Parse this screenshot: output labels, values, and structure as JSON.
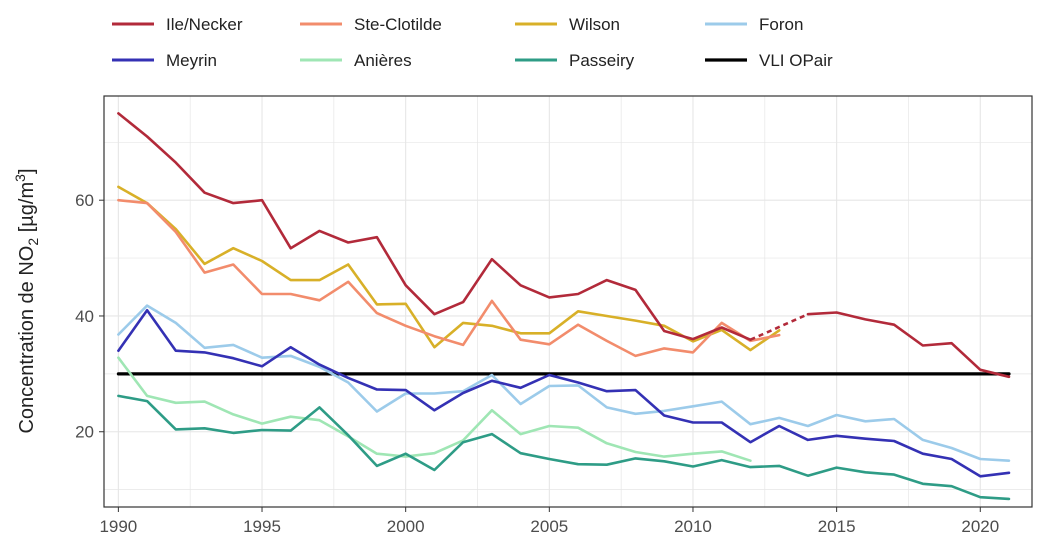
{
  "chart_data": {
    "type": "line",
    "title": "",
    "xlabel": "",
    "ylabel": "Concentration de NO₂ [µg/m³]",
    "ylabel_parts": {
      "prefix": "Concentration de NO",
      "sub": "2",
      "unit_open": " [µg/m",
      "sup": "3",
      "unit_close": "]"
    },
    "xlim": [
      1989.5,
      2021.8
    ],
    "ylim": [
      7,
      78
    ],
    "xticks": [
      1990,
      1995,
      2000,
      2005,
      2010,
      2015,
      2020
    ],
    "yticks": [
      20,
      40,
      60
    ],
    "grid": true,
    "legend_position": "top",
    "series": [
      {
        "name": "Ile/Necker",
        "color": "#b22a3a",
        "x": [
          1990,
          1991,
          1992,
          1993,
          1994,
          1995,
          1996,
          1997,
          1998,
          1999,
          2000,
          2001,
          2002,
          2003,
          2004,
          2005,
          2006,
          2007,
          2008,
          2009,
          2010,
          2011,
          2012,
          2013,
          2014,
          2015,
          2016,
          2017,
          2018,
          2019,
          2020,
          2021
        ],
        "y": [
          75,
          71,
          66.5,
          61.3,
          59.5,
          60,
          51.7,
          54.7,
          52.7,
          53.6,
          45.3,
          40.3,
          42.4,
          49.8,
          45.3,
          43.2,
          43.8,
          46.2,
          44.5,
          37.4,
          36,
          38,
          35.9,
          null,
          40.3,
          40.6,
          39.4,
          38.5,
          34.9,
          35.3,
          30.7,
          29.5
        ],
        "gap_segments": [
          [
            2012,
            35.9,
            2014,
            40.3
          ]
        ]
      },
      {
        "name": "Ste-Clotilde",
        "color": "#f28c6c",
        "x": [
          1990,
          1991,
          1992,
          1993,
          1994,
          1995,
          1996,
          1997,
          1998,
          1999,
          2000,
          2001,
          2002,
          2003,
          2004,
          2005,
          2006,
          2007,
          2008,
          2009,
          2010,
          2011,
          2012,
          2013
        ],
        "y": [
          60,
          59.5,
          54.5,
          47.5,
          48.9,
          43.8,
          43.8,
          42.7,
          45.9,
          40.5,
          38.3,
          36.5,
          35,
          42.6,
          35.9,
          35.1,
          38.5,
          35.7,
          33.1,
          34.4,
          33.7,
          38.8,
          35.7,
          36.7
        ]
      },
      {
        "name": "Wilson",
        "color": "#d8b028",
        "x": [
          1990,
          1991,
          1992,
          1993,
          1994,
          1995,
          1996,
          1997,
          1998,
          1999,
          2000,
          2001,
          2002,
          2003,
          2004,
          2005,
          2006,
          2007,
          2008,
          2009,
          2010,
          2011,
          2012,
          2013
        ],
        "y": [
          62.3,
          59.5,
          55,
          49,
          51.7,
          49.5,
          46.2,
          46.2,
          48.9,
          42,
          42.1,
          34.6,
          38.8,
          38.3,
          37,
          37,
          40.8,
          40,
          39.2,
          38.3,
          35.6,
          37.6,
          34.1,
          37.5
        ]
      },
      {
        "name": "Foron",
        "color": "#9ccbea",
        "x": [
          1990,
          1991,
          1992,
          1993,
          1994,
          1995,
          1996,
          1997,
          1998,
          1999,
          2000,
          2001,
          2002,
          2003,
          2004,
          2005,
          2006,
          2007,
          2008,
          2009,
          2010,
          2011,
          2012,
          2013,
          2014,
          2015,
          2016,
          2017,
          2018,
          2019,
          2020,
          2021
        ],
        "y": [
          36.8,
          41.8,
          38.8,
          34.5,
          35,
          32.8,
          33.1,
          31.2,
          28.5,
          23.5,
          26.6,
          26.6,
          27,
          29.8,
          24.8,
          27.9,
          28,
          24.2,
          23.1,
          23.6,
          24.4,
          25.2,
          21.3,
          22.4,
          21,
          22.9,
          21.8,
          22.2,
          18.6,
          17.2,
          15.3,
          15
        ]
      },
      {
        "name": "Meyrin",
        "color": "#3431b4",
        "x": [
          1990,
          1991,
          1992,
          1993,
          1994,
          1995,
          1996,
          1997,
          1998,
          1999,
          2000,
          2001,
          2002,
          2003,
          2004,
          2005,
          2006,
          2007,
          2008,
          2009,
          2010,
          2011,
          2012,
          2013,
          2014,
          2015,
          2016,
          2017,
          2018,
          2019,
          2020,
          2021
        ],
        "y": [
          34,
          41,
          34,
          33.7,
          32.7,
          31.3,
          34.6,
          31.6,
          29.3,
          27.3,
          27.2,
          23.7,
          26.7,
          28.8,
          27.6,
          29.8,
          28.5,
          27,
          27.2,
          22.8,
          21.6,
          21.6,
          18.2,
          21,
          18.6,
          19.3,
          18.8,
          18.4,
          16.2,
          15.3,
          12.3,
          12.9
        ]
      },
      {
        "name": "Anières",
        "color": "#9fe6b4",
        "x": [
          1990,
          1991,
          1992,
          1993,
          1994,
          1995,
          1996,
          1997,
          1998,
          1999,
          2000,
          2001,
          2002,
          2003,
          2004,
          2005,
          2006,
          2007,
          2008,
          2009,
          2010,
          2011,
          2012
        ],
        "y": [
          32.8,
          26.2,
          25,
          25.2,
          23,
          21.4,
          22.6,
          22,
          19.2,
          16.2,
          15.7,
          16.3,
          18.5,
          23.7,
          19.6,
          21,
          20.7,
          18,
          16.5,
          15.7,
          16.2,
          16.6,
          15
        ]
      },
      {
        "name": "Passeiry",
        "color": "#2e9c86",
        "x": [
          1990,
          1991,
          1992,
          1993,
          1994,
          1995,
          1996,
          1997,
          1998,
          1999,
          2000,
          2001,
          2002,
          2003,
          2004,
          2005,
          2006,
          2007,
          2008,
          2009,
          2010,
          2011,
          2012,
          2013,
          2014,
          2015,
          2016,
          2017,
          2018,
          2019,
          2020,
          2021
        ],
        "y": [
          26.2,
          25.3,
          20.4,
          20.6,
          19.8,
          20.3,
          20.2,
          24.2,
          19.4,
          14.1,
          16.2,
          13.4,
          18.2,
          19.6,
          16.3,
          15.3,
          14.4,
          14.3,
          15.4,
          14.9,
          14,
          15.1,
          13.9,
          14.1,
          12.4,
          13.8,
          13,
          12.6,
          11,
          10.6,
          8.7,
          8.4
        ]
      },
      {
        "name": "VLI OPair",
        "color": "#000000",
        "x": [
          1990,
          2021
        ],
        "y": [
          30,
          30
        ]
      }
    ]
  }
}
